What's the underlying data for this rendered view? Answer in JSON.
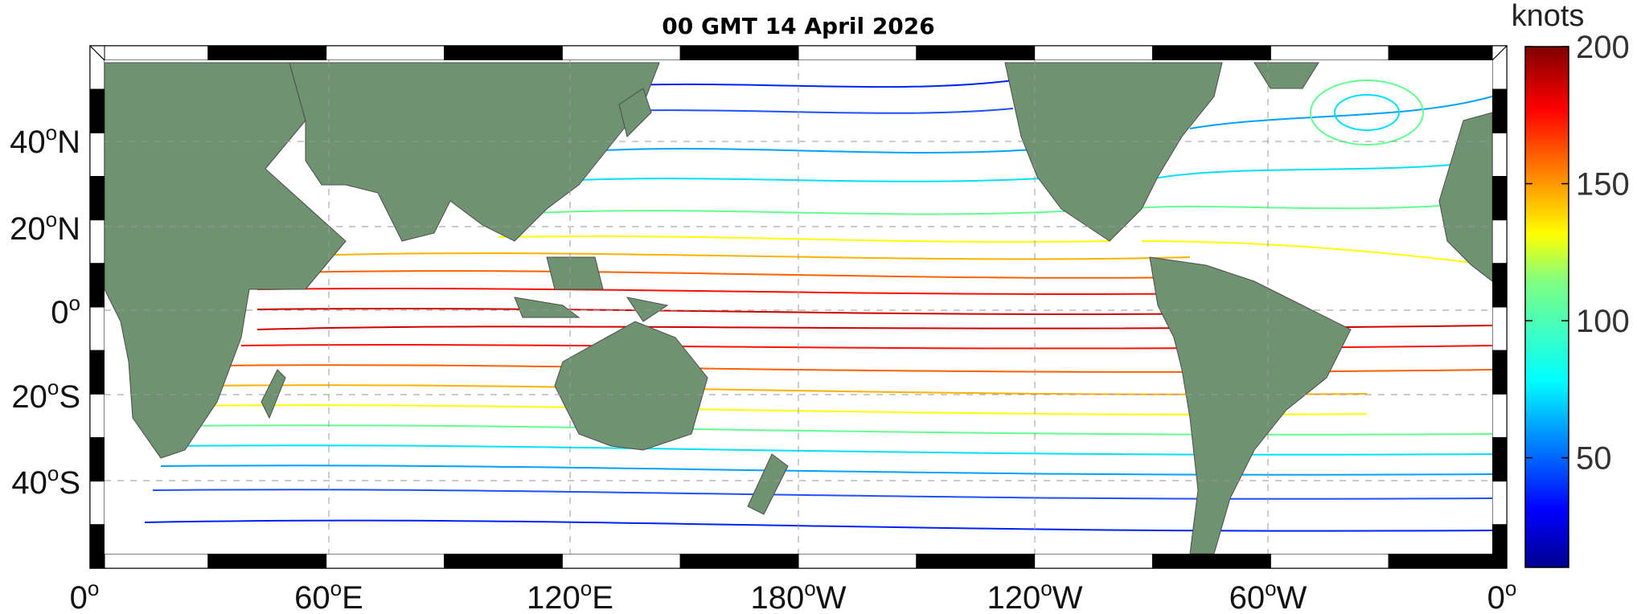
{
  "map": {
    "title": "00 GMT 14 April 2026",
    "lon_labels": [
      {
        "deg": "0",
        "sup": "o",
        "hem": ""
      },
      {
        "deg": "60",
        "sup": "o",
        "hem": "E"
      },
      {
        "deg": "120",
        "sup": "o",
        "hem": "E"
      },
      {
        "deg": "180",
        "sup": "o",
        "hem": "W"
      },
      {
        "deg": "120",
        "sup": "o",
        "hem": "W"
      },
      {
        "deg": "60",
        "sup": "o",
        "hem": "W"
      },
      {
        "deg": "0",
        "sup": "o",
        "hem": ""
      }
    ],
    "lat_labels": [
      {
        "deg": "40",
        "sup": "o",
        "hem": "N"
      },
      {
        "deg": "20",
        "sup": "o",
        "hem": "N"
      },
      {
        "deg": "0",
        "sup": "o",
        "hem": ""
      },
      {
        "deg": "20",
        "sup": "o",
        "hem": "S"
      },
      {
        "deg": "40",
        "sup": "o",
        "hem": "S"
      }
    ],
    "land_color": "#6f9270",
    "ocean_color": "#ffffff"
  },
  "colorbar": {
    "unit": "knots",
    "ticks": [
      "200",
      "150",
      "100",
      "50"
    ],
    "min": 10,
    "max": 200
  }
}
